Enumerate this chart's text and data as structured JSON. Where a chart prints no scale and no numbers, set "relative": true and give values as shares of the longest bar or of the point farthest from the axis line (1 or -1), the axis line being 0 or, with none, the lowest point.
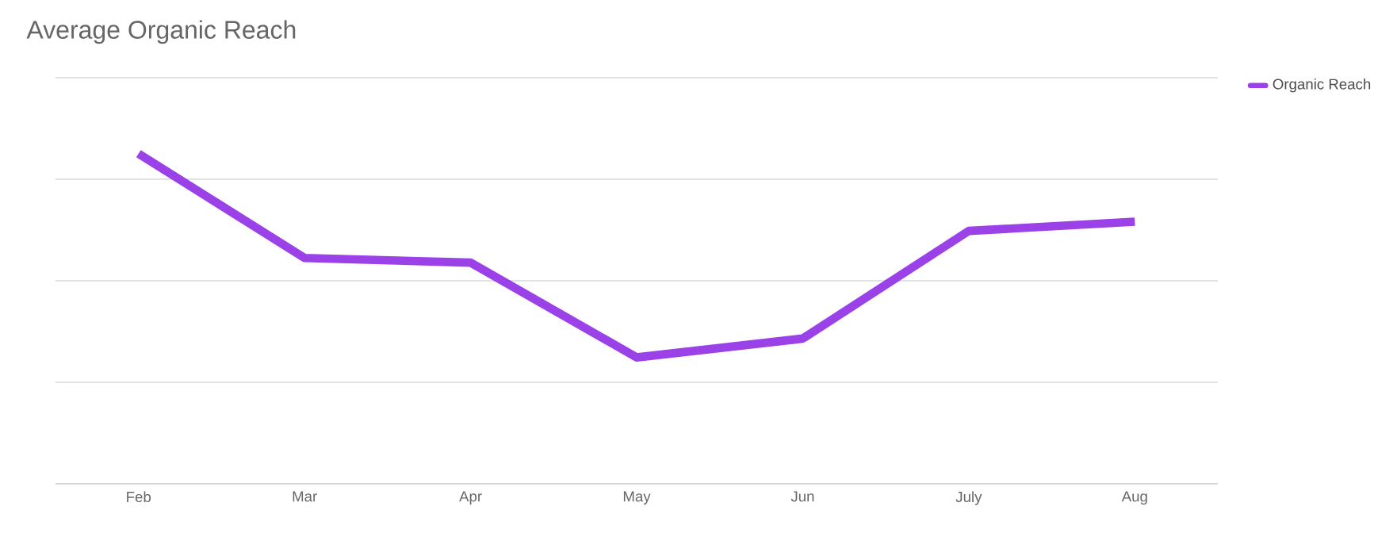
{
  "chart_data": {
    "type": "line",
    "title": "Average Organic Reach",
    "relative": true,
    "grid": "y",
    "legend": "top right",
    "categories": [
      "Feb",
      "Mar",
      "Apr",
      "May",
      "Jun",
      "July",
      "Aug"
    ],
    "series": [
      {
        "name": "Organic Reach",
        "color": "#9b41e8",
        "values": [
          1,
          0.684,
          0.67,
          0.383,
          0.44,
          0.766,
          0.794
        ]
      }
    ]
  }
}
